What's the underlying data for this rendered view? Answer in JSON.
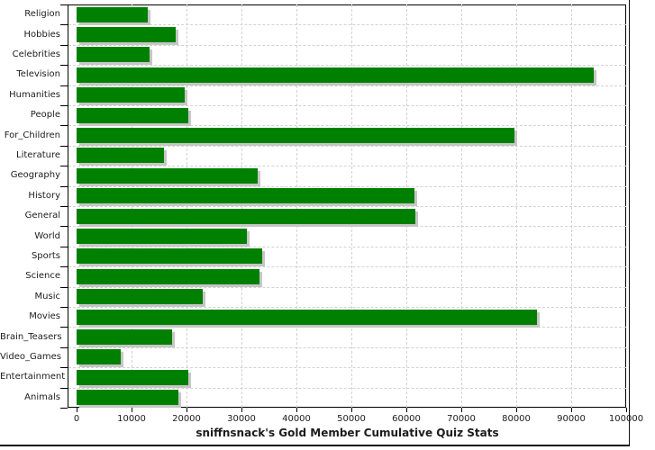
{
  "title": "sniffnsnack's Gold Member Cumulative Quiz Stats",
  "colors": {
    "bar": "#008000",
    "bar_shadow": "#c6c6c6",
    "grid": "#d2d2d2",
    "axis": "#000000",
    "text": "#1c1c1c",
    "background": "#ffffff"
  },
  "chart_data": {
    "type": "bar",
    "orientation": "horizontal",
    "title": "sniffnsnack's Gold Member Cumulative Quiz Stats",
    "xlabel": "",
    "ylabel": "",
    "xlim": [
      0,
      100000
    ],
    "grid": "both",
    "legend": "none",
    "bar_color": "#008000",
    "x_ticks": [
      0,
      10000,
      20000,
      30000,
      40000,
      50000,
      60000,
      70000,
      80000,
      90000,
      100000
    ],
    "x_tick_labels": [
      "0",
      "10000",
      "20000",
      "30000",
      "40000",
      "50000",
      "60000",
      "70000",
      "80000",
      "90000",
      "100000"
    ],
    "categories": [
      "Religion",
      "Hobbies",
      "Celebrities",
      "Television",
      "Humanities",
      "People",
      "For_Children",
      "Literature",
      "Geography",
      "History",
      "General",
      "World",
      "Sports",
      "Science",
      "Music",
      "Movies",
      "Brain_Teasers",
      "Video_Games",
      "Entertainment",
      "Animals"
    ],
    "values": [
      12900,
      18000,
      13300,
      94100,
      19700,
      20300,
      79600,
      15900,
      33000,
      61400,
      61700,
      31000,
      33700,
      33300,
      23000,
      83800,
      17300,
      8100,
      20300,
      18500
    ]
  }
}
